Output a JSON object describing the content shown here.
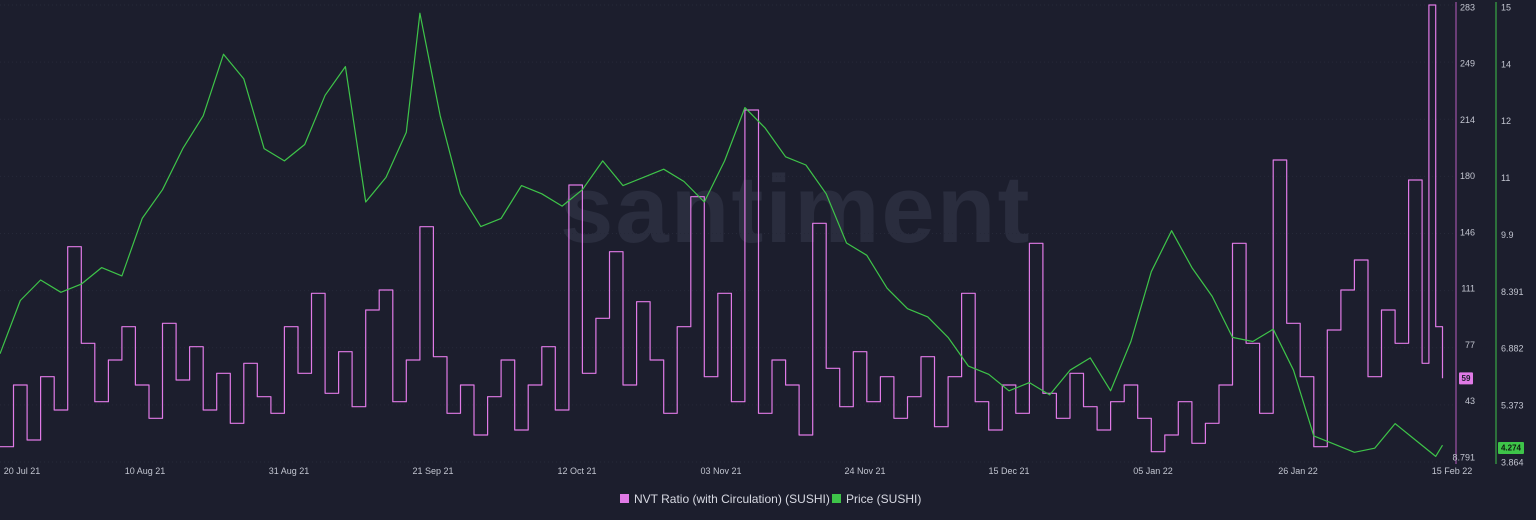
{
  "chart_data": {
    "type": "line",
    "x_ticks": [
      "20 Jul 21",
      "10 Aug 21",
      "31 Aug 21",
      "21 Sep 21",
      "12 Oct 21",
      "03 Nov 21",
      "24 Nov 21",
      "15 Dec 21",
      "05 Jan 22",
      "26 Jan 22",
      "15 Feb 22"
    ],
    "x_range": [
      "2021-07-17",
      "2022-02-17"
    ],
    "y_left": {
      "label": "",
      "ticks": [
        "283",
        "249",
        "214",
        "180",
        "146",
        "111",
        "77",
        "43",
        "8.791"
      ],
      "range": [
        8.791,
        283
      ],
      "color": "#e07ae6",
      "current_badge": "59"
    },
    "y_right": {
      "label": "",
      "ticks": [
        "15",
        "14",
        "12",
        "11",
        "9.9",
        "8.391",
        "6.882",
        "5.373",
        "3.864"
      ],
      "range": [
        3.864,
        15
      ],
      "color": "#3ec449",
      "current_badge": "4.274"
    },
    "grid": true,
    "legend_position": "bottom-center",
    "watermark": "santiment",
    "series": [
      {
        "name": "NVT Ratio (with Circulation) (SUSHI)",
        "color": "#e07ae6",
        "axis": "left",
        "points": [
          [
            "2021-07-17",
            18
          ],
          [
            "2021-07-19",
            55
          ],
          [
            "2021-07-21",
            22
          ],
          [
            "2021-07-23",
            60
          ],
          [
            "2021-07-25",
            40
          ],
          [
            "2021-07-27",
            138
          ],
          [
            "2021-07-29",
            80
          ],
          [
            "2021-07-31",
            45
          ],
          [
            "2021-08-02",
            70
          ],
          [
            "2021-08-04",
            90
          ],
          [
            "2021-08-06",
            55
          ],
          [
            "2021-08-08",
            35
          ],
          [
            "2021-08-10",
            92
          ],
          [
            "2021-08-12",
            58
          ],
          [
            "2021-08-14",
            78
          ],
          [
            "2021-08-16",
            40
          ],
          [
            "2021-08-18",
            62
          ],
          [
            "2021-08-20",
            32
          ],
          [
            "2021-08-22",
            68
          ],
          [
            "2021-08-24",
            48
          ],
          [
            "2021-08-26",
            38
          ],
          [
            "2021-08-28",
            90
          ],
          [
            "2021-08-30",
            62
          ],
          [
            "2021-09-01",
            110
          ],
          [
            "2021-09-03",
            50
          ],
          [
            "2021-09-05",
            75
          ],
          [
            "2021-09-07",
            42
          ],
          [
            "2021-09-09",
            100
          ],
          [
            "2021-09-11",
            112
          ],
          [
            "2021-09-13",
            45
          ],
          [
            "2021-09-15",
            70
          ],
          [
            "2021-09-17",
            150
          ],
          [
            "2021-09-19",
            72
          ],
          [
            "2021-09-21",
            38
          ],
          [
            "2021-09-23",
            55
          ],
          [
            "2021-09-25",
            25
          ],
          [
            "2021-09-27",
            48
          ],
          [
            "2021-09-29",
            70
          ],
          [
            "2021-10-01",
            28
          ],
          [
            "2021-10-03",
            55
          ],
          [
            "2021-10-05",
            78
          ],
          [
            "2021-10-07",
            40
          ],
          [
            "2021-10-09",
            175
          ],
          [
            "2021-10-11",
            62
          ],
          [
            "2021-10-13",
            95
          ],
          [
            "2021-10-15",
            135
          ],
          [
            "2021-10-17",
            55
          ],
          [
            "2021-10-19",
            105
          ],
          [
            "2021-10-21",
            70
          ],
          [
            "2021-10-23",
            38
          ],
          [
            "2021-10-25",
            90
          ],
          [
            "2021-10-27",
            168
          ],
          [
            "2021-10-29",
            60
          ],
          [
            "2021-10-31",
            110
          ],
          [
            "2021-11-02",
            45
          ],
          [
            "2021-11-04",
            220
          ],
          [
            "2021-11-06",
            38
          ],
          [
            "2021-11-08",
            70
          ],
          [
            "2021-11-10",
            55
          ],
          [
            "2021-11-12",
            25
          ],
          [
            "2021-11-14",
            152
          ],
          [
            "2021-11-16",
            65
          ],
          [
            "2021-11-18",
            42
          ],
          [
            "2021-11-20",
            75
          ],
          [
            "2021-11-22",
            45
          ],
          [
            "2021-11-24",
            60
          ],
          [
            "2021-11-26",
            35
          ],
          [
            "2021-11-28",
            48
          ],
          [
            "2021-11-30",
            72
          ],
          [
            "2021-12-02",
            30
          ],
          [
            "2021-12-04",
            60
          ],
          [
            "2021-12-06",
            110
          ],
          [
            "2021-12-08",
            45
          ],
          [
            "2021-12-10",
            28
          ],
          [
            "2021-12-12",
            55
          ],
          [
            "2021-12-14",
            38
          ],
          [
            "2021-12-16",
            140
          ],
          [
            "2021-12-18",
            50
          ],
          [
            "2021-12-20",
            35
          ],
          [
            "2021-12-22",
            62
          ],
          [
            "2021-12-24",
            42
          ],
          [
            "2021-12-26",
            28
          ],
          [
            "2021-12-28",
            45
          ],
          [
            "2021-12-30",
            55
          ],
          [
            "2022-01-01",
            35
          ],
          [
            "2022-01-03",
            15
          ],
          [
            "2022-01-05",
            25
          ],
          [
            "2022-01-07",
            45
          ],
          [
            "2022-01-09",
            20
          ],
          [
            "2022-01-11",
            32
          ],
          [
            "2022-01-13",
            55
          ],
          [
            "2022-01-15",
            140
          ],
          [
            "2022-01-17",
            80
          ],
          [
            "2022-01-19",
            38
          ],
          [
            "2022-01-21",
            190
          ],
          [
            "2022-01-23",
            92
          ],
          [
            "2022-01-25",
            60
          ],
          [
            "2022-01-27",
            18
          ],
          [
            "2022-01-29",
            88
          ],
          [
            "2022-01-31",
            112
          ],
          [
            "2022-02-02",
            130
          ],
          [
            "2022-02-04",
            60
          ],
          [
            "2022-02-06",
            100
          ],
          [
            "2022-02-08",
            80
          ],
          [
            "2022-02-10",
            178
          ],
          [
            "2022-02-12",
            68
          ],
          [
            "2022-02-13",
            283
          ],
          [
            "2022-02-14",
            90
          ],
          [
            "2022-02-15",
            59
          ]
        ]
      },
      {
        "name": "Price (SUSHI)",
        "color": "#3ec449",
        "axis": "right",
        "points": [
          [
            "2021-07-17",
            6.5
          ],
          [
            "2021-07-20",
            7.8
          ],
          [
            "2021-07-23",
            8.3
          ],
          [
            "2021-07-26",
            8.0
          ],
          [
            "2021-07-29",
            8.2
          ],
          [
            "2021-08-01",
            8.6
          ],
          [
            "2021-08-04",
            8.4
          ],
          [
            "2021-08-07",
            9.8
          ],
          [
            "2021-08-10",
            10.5
          ],
          [
            "2021-08-13",
            11.5
          ],
          [
            "2021-08-16",
            12.3
          ],
          [
            "2021-08-19",
            13.8
          ],
          [
            "2021-08-22",
            13.2
          ],
          [
            "2021-08-25",
            11.5
          ],
          [
            "2021-08-28",
            11.2
          ],
          [
            "2021-08-31",
            11.6
          ],
          [
            "2021-09-03",
            12.8
          ],
          [
            "2021-09-06",
            13.5
          ],
          [
            "2021-09-09",
            10.2
          ],
          [
            "2021-09-12",
            10.8
          ],
          [
            "2021-09-15",
            11.9
          ],
          [
            "2021-09-17",
            14.8
          ],
          [
            "2021-09-20",
            12.3
          ],
          [
            "2021-09-23",
            10.4
          ],
          [
            "2021-09-26",
            9.6
          ],
          [
            "2021-09-29",
            9.8
          ],
          [
            "2021-10-02",
            10.6
          ],
          [
            "2021-10-05",
            10.4
          ],
          [
            "2021-10-08",
            10.1
          ],
          [
            "2021-10-11",
            10.5
          ],
          [
            "2021-10-14",
            11.2
          ],
          [
            "2021-10-17",
            10.6
          ],
          [
            "2021-10-20",
            10.8
          ],
          [
            "2021-10-23",
            11.0
          ],
          [
            "2021-10-26",
            10.7
          ],
          [
            "2021-10-29",
            10.2
          ],
          [
            "2021-11-01",
            11.2
          ],
          [
            "2021-11-04",
            12.5
          ],
          [
            "2021-11-07",
            12.0
          ],
          [
            "2021-11-10",
            11.3
          ],
          [
            "2021-11-13",
            11.1
          ],
          [
            "2021-11-16",
            10.4
          ],
          [
            "2021-11-19",
            9.2
          ],
          [
            "2021-11-22",
            8.9
          ],
          [
            "2021-11-25",
            8.1
          ],
          [
            "2021-11-28",
            7.6
          ],
          [
            "2021-12-01",
            7.4
          ],
          [
            "2021-12-04",
            6.9
          ],
          [
            "2021-12-07",
            6.2
          ],
          [
            "2021-12-10",
            6.0
          ],
          [
            "2021-12-13",
            5.6
          ],
          [
            "2021-12-16",
            5.8
          ],
          [
            "2021-12-19",
            5.5
          ],
          [
            "2021-12-22",
            6.1
          ],
          [
            "2021-12-25",
            6.4
          ],
          [
            "2021-12-28",
            5.6
          ],
          [
            "2021-12-31",
            6.8
          ],
          [
            "2022-01-03",
            8.5
          ],
          [
            "2022-01-06",
            9.5
          ],
          [
            "2022-01-09",
            8.6
          ],
          [
            "2022-01-12",
            7.9
          ],
          [
            "2022-01-15",
            6.9
          ],
          [
            "2022-01-18",
            6.8
          ],
          [
            "2022-01-21",
            7.1
          ],
          [
            "2022-01-24",
            6.1
          ],
          [
            "2022-01-27",
            4.5
          ],
          [
            "2022-01-30",
            4.3
          ],
          [
            "2022-02-02",
            4.1
          ],
          [
            "2022-02-05",
            4.2
          ],
          [
            "2022-02-08",
            4.8
          ],
          [
            "2022-02-11",
            4.4
          ],
          [
            "2022-02-14",
            4.0
          ],
          [
            "2022-02-15",
            4.274
          ]
        ]
      }
    ]
  }
}
